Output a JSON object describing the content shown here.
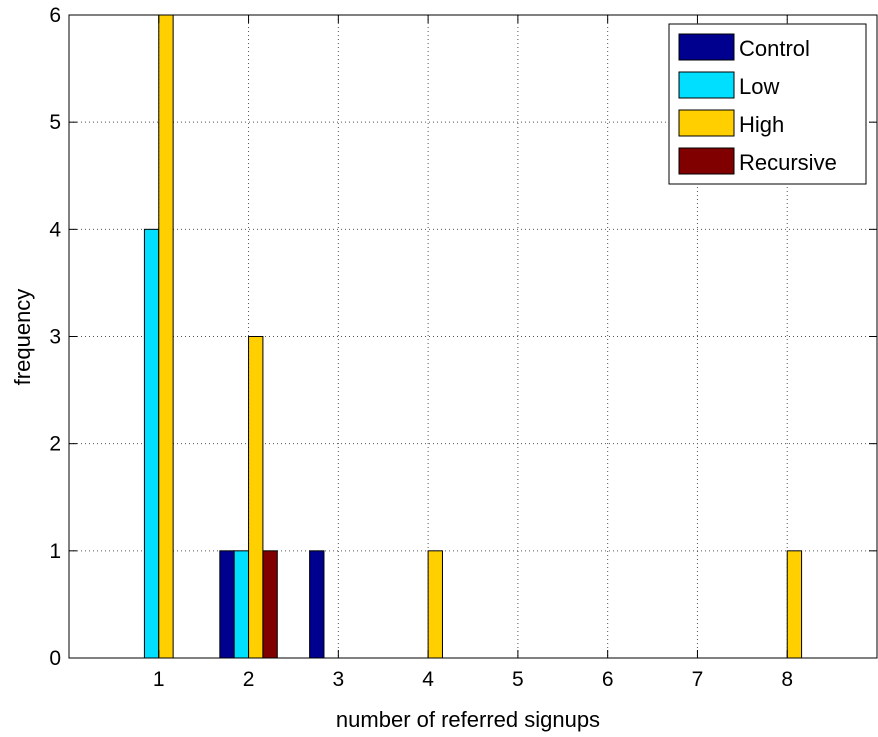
{
  "chart_data": {
    "type": "bar",
    "xlabel": "number of referred signups",
    "ylabel": "frequency",
    "xlim": [
      0,
      9
    ],
    "ylim": [
      0,
      6
    ],
    "xticks": [
      1,
      2,
      3,
      4,
      5,
      6,
      7,
      8
    ],
    "yticks": [
      0,
      1,
      2,
      3,
      4,
      5,
      6
    ],
    "grid": true,
    "legend_position": "top-right",
    "bar_width": 0.16,
    "series": [
      {
        "name": "Control",
        "color": "#00008F",
        "points": [
          {
            "x": 1,
            "y": 0
          },
          {
            "x": 2,
            "y": 1
          },
          {
            "x": 3,
            "y": 1
          }
        ]
      },
      {
        "name": "Low",
        "color": "#00DFFF",
        "points": [
          {
            "x": 1,
            "y": 4
          },
          {
            "x": 2,
            "y": 1
          }
        ]
      },
      {
        "name": "High",
        "color": "#FFCF00",
        "points": [
          {
            "x": 1,
            "y": 6
          },
          {
            "x": 2,
            "y": 3
          },
          {
            "x": 4,
            "y": 1
          },
          {
            "x": 8,
            "y": 1
          }
        ]
      },
      {
        "name": "Recursive",
        "color": "#800000",
        "points": [
          {
            "x": 2,
            "y": 1
          }
        ]
      }
    ]
  }
}
